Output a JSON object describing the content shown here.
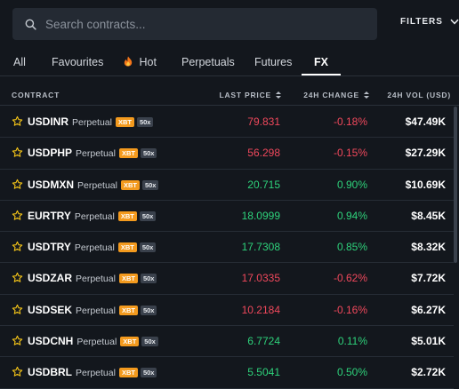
{
  "search": {
    "placeholder": "Search contracts..."
  },
  "filters": {
    "label": "FILTERS"
  },
  "tabs": [
    {
      "label": "All",
      "active": false
    },
    {
      "label": "Favourites",
      "active": false
    },
    {
      "label": "Hot",
      "icon": "fire-icon",
      "active": false
    },
    {
      "label": "Perpetuals",
      "active": false
    },
    {
      "label": "Futures",
      "active": false
    },
    {
      "label": "FX",
      "active": true
    }
  ],
  "table": {
    "columns": [
      "CONTRACT",
      "LAST PRICE",
      "24H CHANGE",
      "24H VOL (USD)"
    ],
    "rows": [
      {
        "symbol": "USDINR",
        "type": "Perpetual",
        "badge": "XBT",
        "leverage": "50x",
        "price": "79.831",
        "change": "-0.18%",
        "volume": "$47.49K",
        "direction": "down"
      },
      {
        "symbol": "USDPHP",
        "type": "Perpetual",
        "badge": "XBT",
        "leverage": "50x",
        "price": "56.298",
        "change": "-0.15%",
        "volume": "$27.29K",
        "direction": "down"
      },
      {
        "symbol": "USDMXN",
        "type": "Perpetual",
        "badge": "XBT",
        "leverage": "50x",
        "price": "20.715",
        "change": "0.90%",
        "volume": "$10.69K",
        "direction": "up"
      },
      {
        "symbol": "EURTRY",
        "type": "Perpetual",
        "badge": "XBT",
        "leverage": "50x",
        "price": "18.0999",
        "change": "0.94%",
        "volume": "$8.45K",
        "direction": "up"
      },
      {
        "symbol": "USDTRY",
        "type": "Perpetual",
        "badge": "XBT",
        "leverage": "50x",
        "price": "17.7308",
        "change": "0.85%",
        "volume": "$8.32K",
        "direction": "up"
      },
      {
        "symbol": "USDZAR",
        "type": "Perpetual",
        "badge": "XBT",
        "leverage": "50x",
        "price": "17.0335",
        "change": "-0.62%",
        "volume": "$7.72K",
        "direction": "down"
      },
      {
        "symbol": "USDSEK",
        "type": "Perpetual",
        "badge": "XBT",
        "leverage": "50x",
        "price": "10.2184",
        "change": "-0.16%",
        "volume": "$6.27K",
        "direction": "down"
      },
      {
        "symbol": "USDCNH",
        "type": "Perpetual",
        "badge": "XBT",
        "leverage": "50x",
        "price": "6.7724",
        "change": "0.11%",
        "volume": "$5.01K",
        "direction": "up"
      },
      {
        "symbol": "USDBRL",
        "type": "Perpetual",
        "badge": "XBT",
        "leverage": "50x",
        "price": "5.5041",
        "change": "0.50%",
        "volume": "$2.72K",
        "direction": "up"
      }
    ]
  },
  "colors": {
    "background": "#13171d",
    "negative": "#f0485c",
    "positive": "#2ed27b",
    "badge_xbt": "#f39a1e",
    "star": "#f5c518"
  }
}
